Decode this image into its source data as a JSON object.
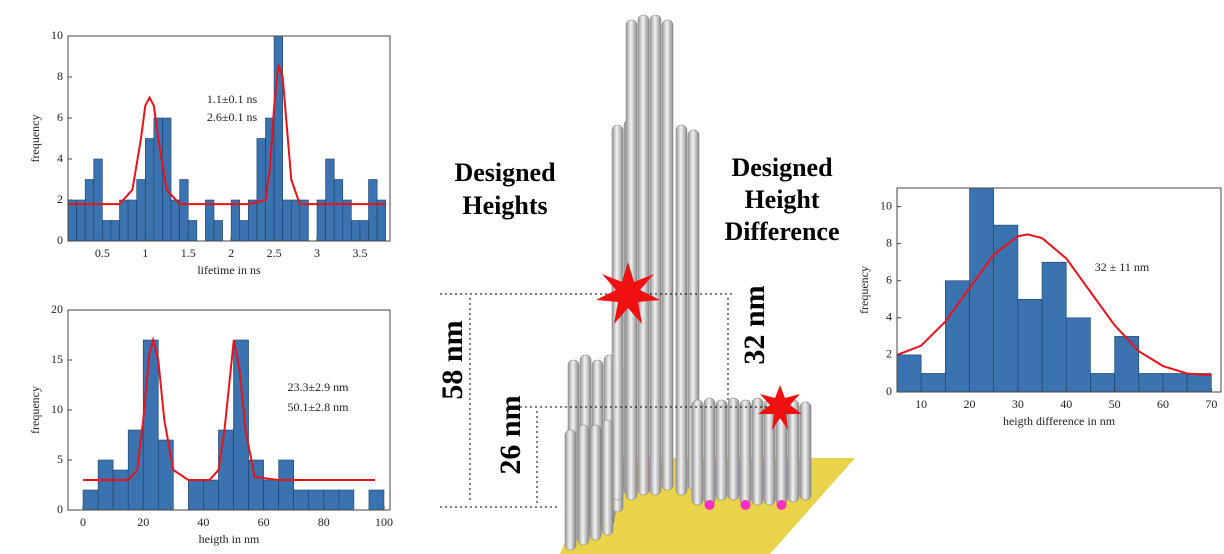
{
  "chart_data": [
    {
      "type": "histogram",
      "xlabel": "lifetime in ns",
      "ylabel": "frequency",
      "bins": [
        0.1,
        0.2,
        0.3,
        0.4,
        0.5,
        0.6,
        0.7,
        0.8,
        0.9,
        1.0,
        1.1,
        1.2,
        1.3,
        1.4,
        1.5,
        1.6,
        1.7,
        1.8,
        1.9,
        2.0,
        2.1,
        2.2,
        2.3,
        2.4,
        2.5,
        2.6,
        2.7,
        2.8,
        2.9,
        3.0,
        3.1,
        3.2,
        3.3,
        3.4,
        3.5,
        3.6,
        3.7,
        3.8
      ],
      "values": [
        2,
        2,
        3,
        4,
        1,
        1,
        2,
        2,
        3,
        5,
        6,
        6,
        2,
        3,
        1,
        0,
        2,
        1,
        0,
        2,
        1,
        2,
        5,
        6,
        10,
        2,
        2,
        2,
        0,
        2,
        4,
        3,
        2,
        1,
        1,
        3,
        2
      ],
      "color": "#3b73b0",
      "fit": {
        "color": "#e8121b",
        "x": [
          0.1,
          0.7,
          0.85,
          0.95,
          1.0,
          1.05,
          1.1,
          1.15,
          1.25,
          1.4,
          2.2,
          2.4,
          2.45,
          2.5,
          2.55,
          2.6,
          2.65,
          2.7,
          2.8,
          3.8
        ],
        "values": [
          1.8,
          1.8,
          2.5,
          5.0,
          6.6,
          7.0,
          6.6,
          5.0,
          2.5,
          1.8,
          1.8,
          2.0,
          3.5,
          6.5,
          8.6,
          8.0,
          5.5,
          3.0,
          1.8,
          1.8
        ]
      },
      "annotations": [
        "1.1±0.1 ns",
        "2.6±0.1 ns"
      ],
      "xlim": [
        0.1,
        3.85
      ],
      "ylim": [
        0,
        10
      ],
      "xticks": [
        0.5,
        1,
        1.5,
        2,
        2.5,
        3,
        3.5
      ],
      "yticks": [
        0,
        2,
        4,
        6,
        8,
        10
      ]
    },
    {
      "type": "histogram",
      "xlabel": "heigth in nm",
      "ylabel": "frequency",
      "bins": [
        0,
        5,
        10,
        15,
        20,
        25,
        30,
        35,
        40,
        45,
        50,
        55,
        60,
        65,
        70,
        75,
        80,
        85,
        90,
        95,
        100
      ],
      "values": [
        2,
        5,
        4,
        8,
        17,
        7,
        0,
        3,
        3,
        8,
        17,
        5,
        3,
        5,
        2,
        2,
        2,
        2,
        0,
        2
      ],
      "color": "#3b73b0",
      "fit": {
        "color": "#e8121b",
        "x": [
          0,
          15,
          18,
          20,
          22,
          23.3,
          25,
          27,
          30,
          35,
          42,
          45,
          47,
          50.1,
          52,
          54,
          57,
          65,
          97
        ],
        "values": [
          3,
          3,
          4,
          9,
          15.5,
          17,
          15,
          9,
          4,
          3,
          3,
          4,
          8,
          17,
          14,
          8,
          3.3,
          3,
          3
        ]
      },
      "annotations": [
        "23.3±2.9 nm",
        "50.1±2.8 nm"
      ],
      "xlim": [
        -5,
        102
      ],
      "ylim": [
        0,
        20
      ],
      "xticks": [
        0,
        20,
        40,
        60,
        80,
        100
      ],
      "yticks": [
        0,
        5,
        10,
        15,
        20
      ]
    },
    {
      "type": "histogram",
      "xlabel": "heigth difference in nm",
      "ylabel": "frequency",
      "bins": [
        5,
        10,
        15,
        20,
        25,
        30,
        35,
        40,
        45,
        50,
        55,
        60,
        65,
        70
      ],
      "values": [
        2,
        1,
        6,
        11,
        9,
        5,
        7,
        4,
        1,
        3,
        1,
        1,
        1
      ],
      "color": "#3b73b0",
      "fit": {
        "color": "#e8121b",
        "x": [
          5,
          10,
          15,
          20,
          25,
          30,
          32,
          35,
          40,
          45,
          50,
          55,
          60,
          65,
          70
        ],
        "values": [
          2.0,
          2.5,
          3.8,
          5.6,
          7.4,
          8.4,
          8.5,
          8.3,
          7.2,
          5.4,
          3.6,
          2.2,
          1.4,
          1.0,
          0.9
        ]
      },
      "annotations": [
        "32 ± 11 nm"
      ],
      "xlim": [
        5,
        72
      ],
      "ylim": [
        0,
        11
      ],
      "xticks": [
        10,
        20,
        30,
        40,
        50,
        60,
        70
      ],
      "yticks": [
        0,
        2,
        4,
        6,
        8,
        10
      ]
    }
  ],
  "diagram": {
    "left_label": [
      "Designed",
      "Heights"
    ],
    "right_label": [
      "Designed",
      "Height",
      "Difference"
    ],
    "dims": [
      "58 nm",
      "26 nm",
      "32 nm"
    ]
  }
}
